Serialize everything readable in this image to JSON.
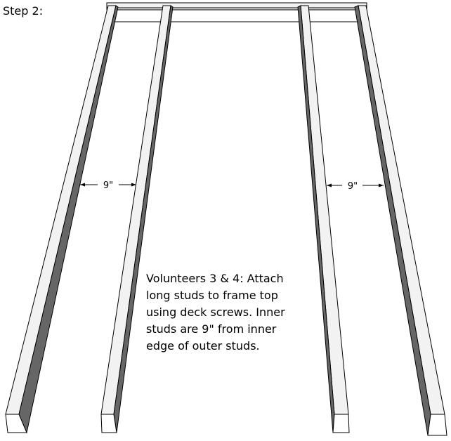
{
  "step_title": "Step 2:",
  "dimension_labels": [
    "9\"",
    "9\""
  ],
  "instruction_lines": [
    "Volunteers 3 & 4: Attach",
    "long studs to frame top",
    "using deck screws. Inner",
    "studs are 9\" from inner",
    "edge of outer studs."
  ],
  "colors": {
    "wood_face": "#f2f2f2",
    "wood_side": "#666666",
    "outline": "#000000",
    "background": "#ffffff"
  }
}
